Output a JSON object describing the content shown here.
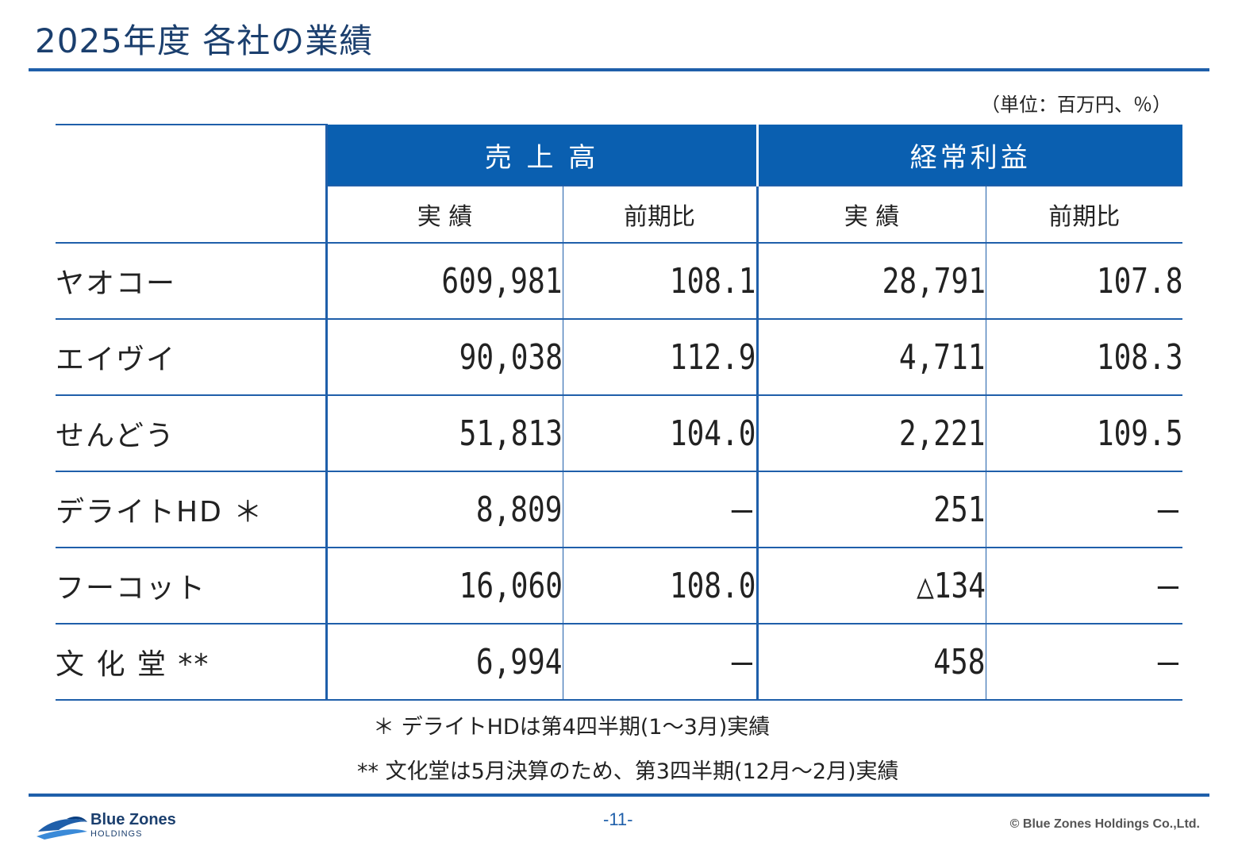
{
  "header": {
    "title": "2025年度 各社の業績",
    "unit_note": "（単位：百万円、％）"
  },
  "table": {
    "groups": [
      "売 上 高",
      "経常利益"
    ],
    "subheaders": [
      "実 績",
      "前期比",
      "実 績",
      "前期比"
    ],
    "rows": [
      {
        "company": "ヤオコー",
        "sales": "609,981",
        "sales_yoy": "108.1",
        "profit": "28,791",
        "profit_yoy": "107.8"
      },
      {
        "company": "エイヴイ",
        "sales": "90,038",
        "sales_yoy": "112.9",
        "profit": "4,711",
        "profit_yoy": "108.3"
      },
      {
        "company": "せんどう",
        "sales": "51,813",
        "sales_yoy": "104.0",
        "profit": "2,221",
        "profit_yoy": "109.5"
      },
      {
        "company": "デライトHD ＊",
        "sales": "8,809",
        "sales_yoy": "－",
        "profit": "251",
        "profit_yoy": "－"
      },
      {
        "company": "フーコット",
        "sales": "16,060",
        "sales_yoy": "108.0",
        "profit": "△134",
        "profit_yoy": "－"
      },
      {
        "company": "文 化 堂 **",
        "sales": "6,994",
        "sales_yoy": "－",
        "profit": "458",
        "profit_yoy": "－"
      }
    ]
  },
  "notes": [
    "＊ デライトHDは第4四半期(1～3月)実績",
    "** 文化堂は5月決算のため、第3四半期(12月～2月)実績"
  ],
  "footer": {
    "logo_name": "Blue Zones",
    "logo_sub": "HOLDINGS",
    "page_number": "-11-",
    "copyright": "© Blue Zones Holdings Co.,Ltd."
  },
  "colors": {
    "brand_blue": "#0a5fb0",
    "rule_blue": "#1f5faa",
    "title_navy": "#1b3f6e"
  }
}
